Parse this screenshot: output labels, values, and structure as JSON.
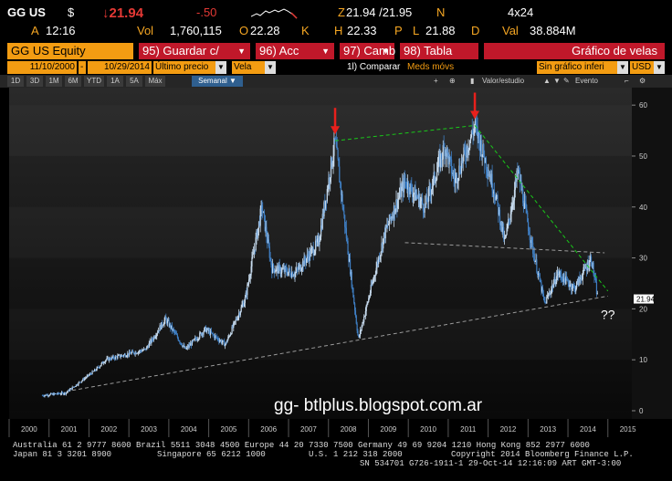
{
  "quote": {
    "ticker": "GG US",
    "currency_symbol": "$",
    "last_price": "↓21.94",
    "change": "-.50",
    "ask_label": "A",
    "time": "12:16",
    "vol_label": "Vol",
    "volume": "1,760,115",
    "open_label": "O",
    "open": "22.28",
    "open_flag": "K",
    "bid_ask_label": "Z",
    "bid_ask": "21.94 /21.95",
    "bid_ask_flag": "N",
    "size": "4x24",
    "high_label": "H",
    "high": "22.33",
    "high_flag": "P",
    "low_label": "L",
    "low": "21.88",
    "low_flag": "D",
    "val_label": "Val",
    "value": "38.884M"
  },
  "toolbar": {
    "security": "GG US Equity",
    "btn_save": "95) Guardar c/",
    "btn_actions": "96) Acc",
    "btn_change": "97) Camb",
    "btn_table": "98) Tabla",
    "chart_title": "Gráfico de velas"
  },
  "settings": {
    "start_date": "11/10/2000",
    "end_date": "10/29/2014",
    "price_type": "Último precio",
    "chart_kind": "Vela",
    "compare": "1l) Comparar",
    "moving_avg": "Meds móvs",
    "overlay": "Sin gráfico inferi",
    "currency": "USD"
  },
  "ranges": {
    "tabs": [
      "1D",
      "3D",
      "1M",
      "6M",
      "YTD",
      "1A",
      "5A",
      "Máx"
    ],
    "frequency": "Semanal",
    "value_study": "Valor/estudio",
    "event": "Evento"
  },
  "chart_data": {
    "type": "candlestick",
    "frequency": "weekly",
    "x_ticks": [
      "2000",
      "2001",
      "2002",
      "2003",
      "2004",
      "2005",
      "2006",
      "2007",
      "2008",
      "2009",
      "2010",
      "2011",
      "2012",
      "2013",
      "2014",
      "2015"
    ],
    "y_ticks": [
      "0",
      "10",
      "20",
      "30",
      "40",
      "50",
      "60"
    ],
    "ylim": [
      0,
      62
    ],
    "last_price_marker": "21.94",
    "annotation": "??",
    "watermark": "gg- btlplus.blogspot.com.ar",
    "anchor_points": [
      {
        "x": "2000-11",
        "y": 3.0
      },
      {
        "x": "2001-06",
        "y": 3.5
      },
      {
        "x": "2002-03",
        "y": 8
      },
      {
        "x": "2002-06",
        "y": 10
      },
      {
        "x": "2003-06",
        "y": 12
      },
      {
        "x": "2003-12",
        "y": 18
      },
      {
        "x": "2004-06",
        "y": 12
      },
      {
        "x": "2004-12",
        "y": 16
      },
      {
        "x": "2005-06",
        "y": 13
      },
      {
        "x": "2005-12",
        "y": 22
      },
      {
        "x": "2006-05",
        "y": 40
      },
      {
        "x": "2006-08",
        "y": 28
      },
      {
        "x": "2007-03",
        "y": 27
      },
      {
        "x": "2007-10",
        "y": 33
      },
      {
        "x": "2008-03",
        "y": 53
      },
      {
        "x": "2008-10",
        "y": 14
      },
      {
        "x": "2009-06",
        "y": 35
      },
      {
        "x": "2009-12",
        "y": 45
      },
      {
        "x": "2010-06",
        "y": 40
      },
      {
        "x": "2010-12",
        "y": 52
      },
      {
        "x": "2011-03",
        "y": 45
      },
      {
        "x": "2011-09",
        "y": 56
      },
      {
        "x": "2012-03",
        "y": 43
      },
      {
        "x": "2012-06",
        "y": 33
      },
      {
        "x": "2012-10",
        "y": 47
      },
      {
        "x": "2013-02",
        "y": 33
      },
      {
        "x": "2013-06",
        "y": 21
      },
      {
        "x": "2013-10",
        "y": 27
      },
      {
        "x": "2014-03",
        "y": 24
      },
      {
        "x": "2014-08",
        "y": 30
      },
      {
        "x": "2014-10",
        "y": 21.94
      }
    ],
    "trendlines": [
      {
        "style": "dashed",
        "color": "#19c919",
        "from": {
          "x": "2008-03",
          "y": 53
        },
        "to": {
          "x": "2011-09",
          "y": 56
        }
      },
      {
        "style": "dashed",
        "color": "#19c919",
        "from": {
          "x": "2011-09",
          "y": 56
        },
        "to": {
          "x": "2015-01",
          "y": 23.5
        }
      },
      {
        "style": "dashed",
        "color": "#9a9a9a",
        "from": {
          "x": "2001-08",
          "y": 4
        },
        "to": {
          "x": "2015-01",
          "y": 22.5
        }
      },
      {
        "style": "dashed",
        "color": "#9a9a9a",
        "from": {
          "x": "2009-12",
          "y": 33
        },
        "to": {
          "x": "2014-12",
          "y": 31
        }
      }
    ],
    "arrows": [
      {
        "x": "2008-03",
        "y": 53,
        "color": "#e8201c"
      },
      {
        "x": "2011-09",
        "y": 56,
        "color": "#e8201c"
      }
    ],
    "colors": {
      "up": "#c8dcef",
      "down": "#3f7fc4",
      "background_top": "#2a2a2a",
      "background_bottom": "#0a0a0a"
    }
  },
  "footer": {
    "line1": "Australia 61 2 9777 8600 Brazil 5511 3048 4500 Europe 44 20 7330 7500 Germany 49 69 9204 1210 Hong Kong 852 2977 6000",
    "line2_a": "Japan 81 3 3201 8900",
    "line2_b": "Singapore 65 6212 1000",
    "line2_c": "U.S. 1 212 318 2000",
    "line2_d": "Copyright 2014 Bloomberg Finance L.P.",
    "line3": "SN 534701 G726-1911-1 29-Oct-14 12:16:09 ART  GMT-3:00"
  }
}
